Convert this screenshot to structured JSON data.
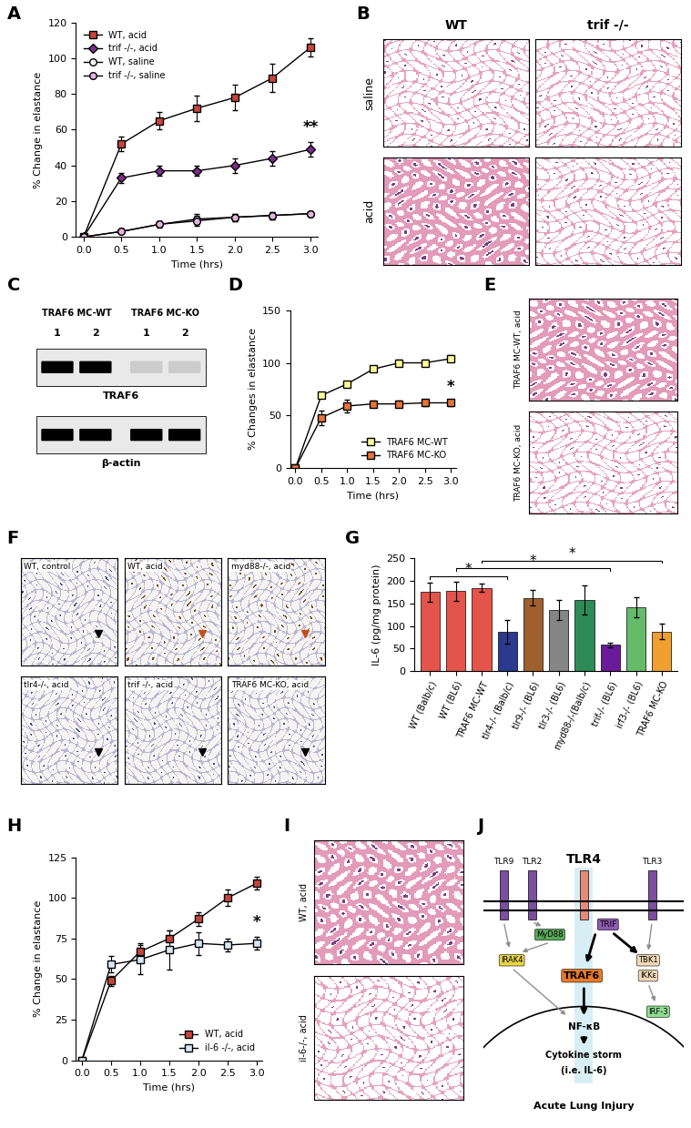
{
  "chart_data": [
    {
      "panel": "A",
      "type": "line",
      "x": [
        0,
        0.5,
        1,
        1.5,
        2,
        2.5,
        3
      ],
      "xlabel": "Time (hrs)",
      "ylabel": "% Change in elastance",
      "xlim": [
        -0.1,
        3.1
      ],
      "xticks": [
        {
          "value": 0,
          "label": "0.0"
        },
        {
          "value": 0.5,
          "label": "0.5"
        },
        {
          "value": 1,
          "label": "1.0"
        },
        {
          "value": 1.5,
          "label": "1.5"
        },
        {
          "value": 2,
          "label": "2.0"
        },
        {
          "value": 2.5,
          "label": "2.5"
        },
        {
          "value": 3,
          "label": "3.0"
        }
      ],
      "ylim": [
        0,
        120
      ],
      "yticks": [
        0,
        20,
        40,
        60,
        80,
        100,
        120
      ],
      "legend": "upper left",
      "grid": false,
      "series": [
        {
          "name": "WT, acid",
          "color": "#c8453c",
          "marker": "square",
          "values": [
            0,
            52,
            65,
            72,
            78,
            89,
            106
          ],
          "errors": [
            0,
            4,
            5,
            7,
            7,
            8,
            5
          ]
        },
        {
          "name": "trif -/-, acid",
          "color": "#7b2d8e",
          "marker": "diamond",
          "values": [
            0,
            33,
            37,
            37,
            40,
            44,
            49
          ],
          "errors": [
            0,
            3,
            3,
            3,
            4,
            4,
            4
          ],
          "annotation": "**"
        },
        {
          "name": "WT, saline",
          "color": "#ffffff",
          "marker": "circle",
          "values": [
            0,
            3,
            7,
            10,
            11,
            12,
            13
          ],
          "errors": [
            0,
            1,
            2,
            3,
            2,
            2,
            1
          ]
        },
        {
          "name": "trif -/-, saline",
          "color": "#e3b3e3",
          "marker": "circle",
          "values": [
            0,
            3,
            7,
            9,
            11,
            12,
            13
          ],
          "errors": [
            0,
            1,
            1,
            3,
            2,
            2,
            1
          ]
        }
      ]
    },
    {
      "panel": "D",
      "type": "line",
      "x": [
        0,
        0.5,
        1,
        1.5,
        2,
        2.5,
        3
      ],
      "xlabel": "Time (hrs)",
      "ylabel": "% Changes in elastance",
      "xlim": [
        -0.1,
        3.1
      ],
      "xticks": [
        {
          "value": 0,
          "label": "0.0"
        },
        {
          "value": 0.5,
          "label": "0.5"
        },
        {
          "value": 1,
          "label": "1.0"
        },
        {
          "value": 1.5,
          "label": "1.5"
        },
        {
          "value": 2,
          "label": "2.0"
        },
        {
          "value": 2.5,
          "label": "2.5"
        },
        {
          "value": 3,
          "label": "3.0"
        }
      ],
      "ylim": [
        0,
        150
      ],
      "yticks": [
        0,
        50,
        100,
        150
      ],
      "legend": "lower right",
      "grid": false,
      "series": [
        {
          "name": "TRAF6 MC-WT",
          "color": "#ffff99",
          "marker": "square",
          "values": [
            0,
            69,
            80,
            94,
            100,
            100,
            104
          ],
          "errors": [
            0,
            2,
            2,
            2,
            3,
            3,
            3
          ]
        },
        {
          "name": "TRAF6 MC-KO",
          "color": "#e8743b",
          "marker": "square",
          "values": [
            0,
            48,
            59,
            61,
            61,
            62,
            62
          ],
          "errors": [
            0,
            7,
            6,
            3,
            3,
            3,
            3
          ],
          "annotation": "*"
        }
      ]
    },
    {
      "panel": "G",
      "type": "bar",
      "categories": [
        "WT (Balb/c)",
        "WT (BL6)",
        "TRAF6 MC-WT",
        "tlr4-/- (Balb/c)",
        "tlr9-/- (BL6)",
        "tlr3-/- (BL6)",
        "myd88-/-(Balb/c)",
        "trif-/- (BL6)",
        "irf3-/- (BL6)",
        "TRAF6 MC-KO"
      ],
      "values": [
        175,
        177,
        185,
        87,
        162,
        135,
        158,
        58,
        142,
        88
      ],
      "errors": [
        22,
        22,
        10,
        27,
        17,
        22,
        32,
        5,
        22,
        17
      ],
      "colors": [
        "#e4544a",
        "#e4544a",
        "#e4544a",
        "#2b3a8f",
        "#a0602d",
        "#858585",
        "#2e8b57",
        "#6a1b9a",
        "#66bb6a",
        "#f0a030"
      ],
      "ylabel": "IL-6 (pg/mg protein)",
      "ylim": [
        0,
        250
      ],
      "yticks": [
        0,
        50,
        100,
        150,
        200,
        250
      ],
      "grid": false,
      "significance": [
        {
          "from": "WT (Balb/c)",
          "to": "tlr4-/- (Balb/c)",
          "label": "*"
        },
        {
          "from": "WT (BL6)",
          "to": "trif-/- (BL6)",
          "label": "*"
        },
        {
          "from": "TRAF6 MC-WT",
          "to": "TRAF6 MC-KO",
          "label": "*"
        }
      ]
    },
    {
      "panel": "H",
      "type": "line",
      "x": [
        0,
        0.5,
        1,
        1.5,
        2,
        2.5,
        3
      ],
      "xlabel": "Time (hrs)",
      "ylabel": "% Change in elastance",
      "xlim": [
        -0.1,
        3.1
      ],
      "xticks": [
        {
          "value": 0,
          "label": "0.0"
        },
        {
          "value": 0.5,
          "label": "0.5"
        },
        {
          "value": 1,
          "label": "1.0"
        },
        {
          "value": 1.5,
          "label": "1.5"
        },
        {
          "value": 2,
          "label": "2.0"
        },
        {
          "value": 2.5,
          "label": "2.5"
        },
        {
          "value": 3,
          "label": "3.0"
        }
      ],
      "ylim": [
        0,
        125
      ],
      "yticks": [
        0,
        25,
        50,
        75,
        100,
        125
      ],
      "legend": "lower right",
      "grid": false,
      "series": [
        {
          "name": "WT, acid",
          "color": "#c8453c",
          "marker": "square",
          "values": [
            0,
            49,
            67,
            75,
            87,
            100,
            109
          ],
          "errors": [
            0,
            3,
            5,
            5,
            4,
            5,
            4
          ]
        },
        {
          "name": "il-6 -/-, acid",
          "color": "#dbe8f5",
          "marker": "square",
          "values": [
            0,
            59,
            62,
            68,
            72,
            71,
            72
          ],
          "errors": [
            0,
            5,
            9,
            12,
            7,
            4,
            4
          ],
          "annotation": "*"
        }
      ]
    }
  ],
  "blot": {
    "panel": "C",
    "groups": [
      "TRAF6 MC-WT",
      "TRAF6 MC-KO"
    ],
    "lanes": [
      "1",
      "2",
      "1",
      "2"
    ],
    "rows": [
      "TRAF6",
      "β-actin"
    ]
  },
  "images": [
    {
      "panel": "B",
      "columns": [
        "WT",
        "trif -/-"
      ],
      "rows": [
        "saline",
        "acid"
      ]
    },
    {
      "panel": "E",
      "labels": [
        "TRAF6 MC-WT, acid",
        "TRAF6 MC-KO, acid"
      ]
    },
    {
      "panel": "F",
      "labels": [
        "WT, control",
        "WT, acid",
        "myd88-/-, acid",
        "tlr4-/-, acid",
        "trif -/-, acid",
        "TRAF6 MC-KO, acid"
      ]
    },
    {
      "panel": "I",
      "labels": [
        "WT, acid",
        "il-6-/-, acid"
      ]
    }
  ],
  "diagram": {
    "panel": "J",
    "receptors": [
      "TLR9",
      "TLR2",
      "TLR4",
      "TLR3"
    ],
    "nodes": [
      "MyD88",
      "TRIF",
      "IRAK4",
      "TRAF6",
      "TBK1",
      "IKKε",
      "IRF-3",
      "NF-κB",
      "Cytokine storm",
      "(i.e. IL-6)",
      "Acute Lung Injury"
    ]
  }
}
